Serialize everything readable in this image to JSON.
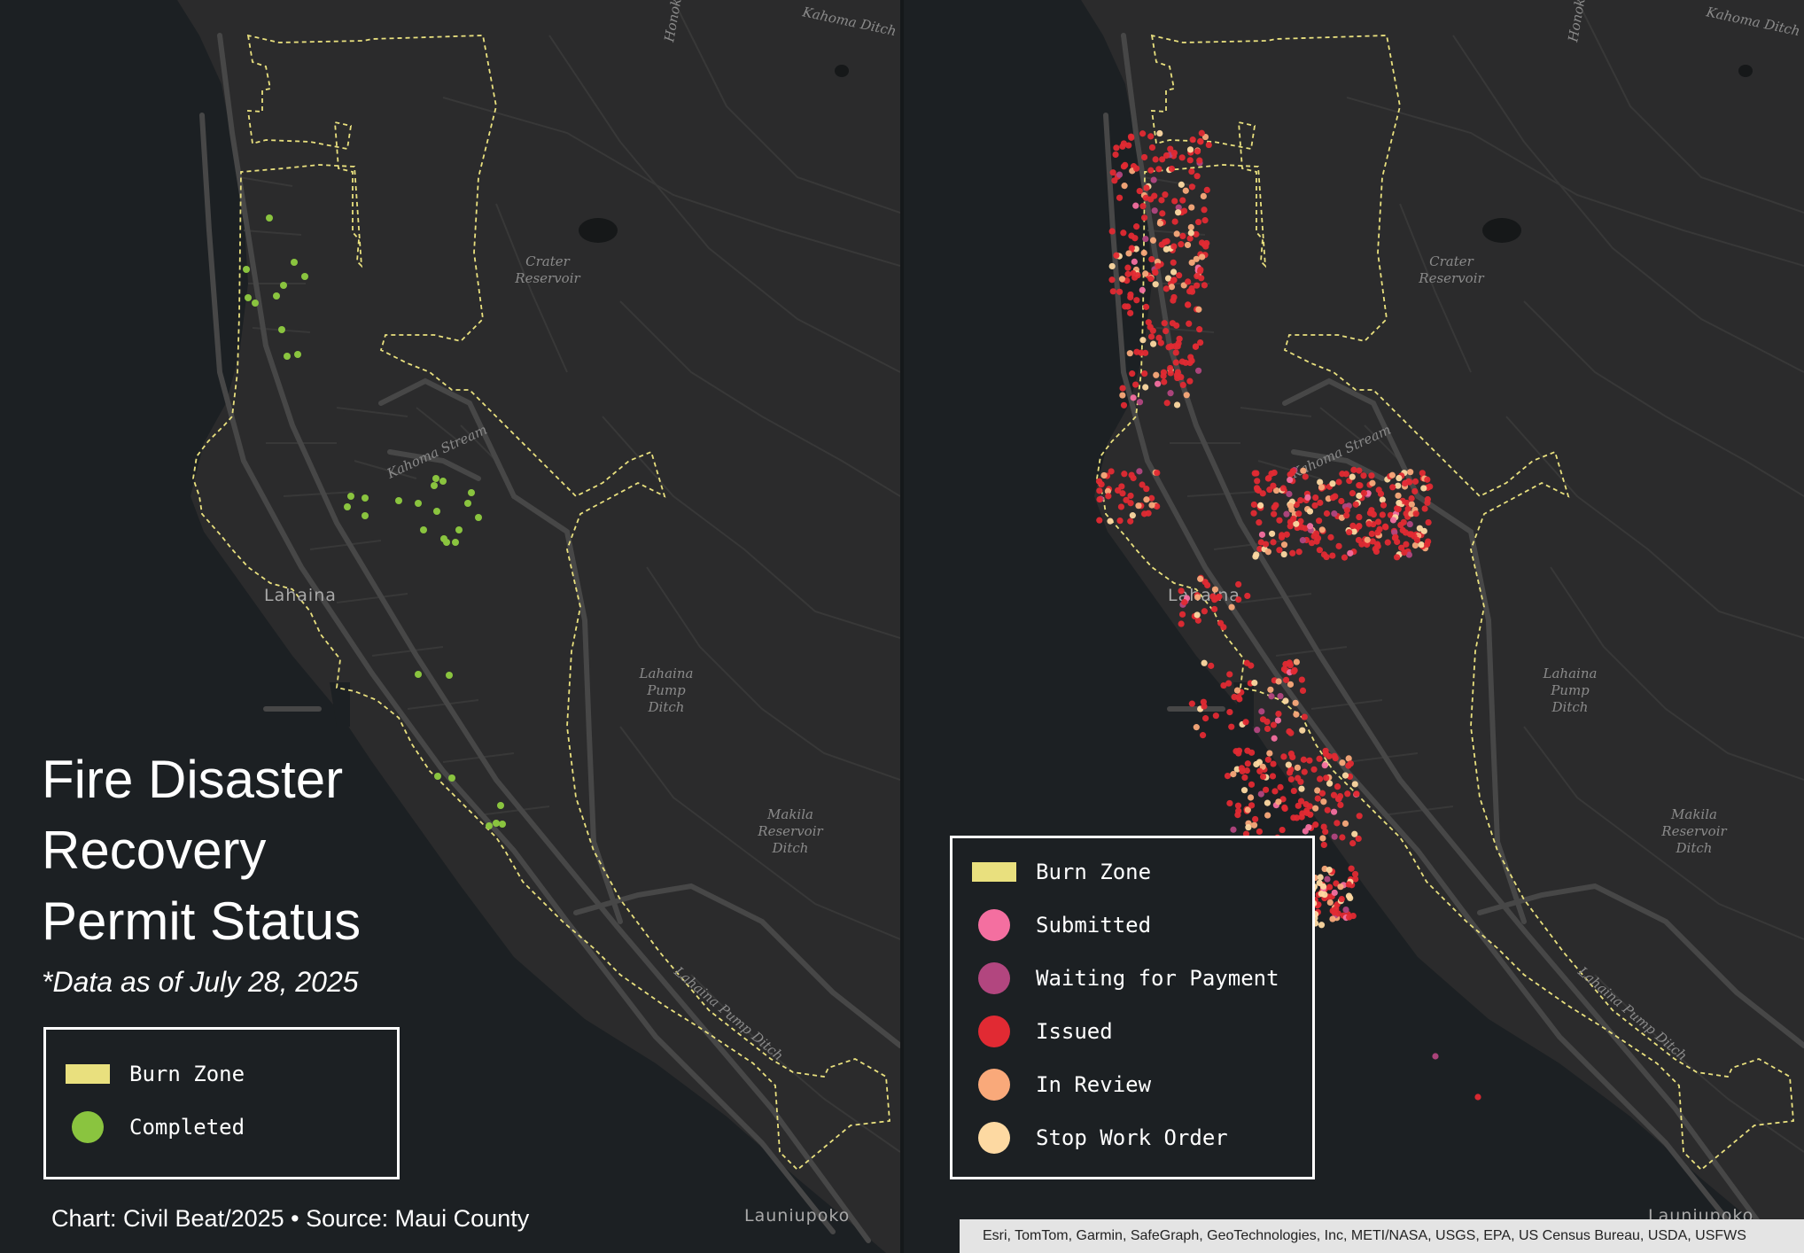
{
  "title": "Fire Disaster Recovery Permit Status",
  "title_lines": [
    "Fire Disaster",
    "Recovery",
    "Permit Status"
  ],
  "subtitle": "*Data as of July 28, 2025",
  "credit": "Chart: Civil Beat/2025 • Source: Maui County",
  "attribution": "Esri, TomTom, Garmin, SafeGraph, GeoTechnologies, Inc, METI/NASA, USGS, EPA, US Census Bureau, USDA, USFWS",
  "colors": {
    "background": "#1c2023",
    "land": "#2b2b2c",
    "roads": "#474747",
    "burn_zone": "#e9e07e",
    "completed": "#8ac43f",
    "submitted": "#f46fa0",
    "waiting_for_payment": "#b2467f",
    "issued": "#e12a33",
    "in_review": "#f9a97a",
    "stop_work_order": "#fdd9a2"
  },
  "map_labels": {
    "town": "Lahaina",
    "south_town": "Launiupoko",
    "crater_reservoir": [
      "Crater",
      "Reservoir"
    ],
    "lahaina_pump_ditch": [
      "Lahaina",
      "Pump",
      "Ditch"
    ],
    "makila_reservoir_ditch": [
      "Makila",
      "Reservoir",
      "Ditch"
    ],
    "kahoma_stream": "Kahoma Stream",
    "kahoma_ditch": "Kahoma Ditch",
    "honokowai": "Honoko",
    "lahaina_pump_ditch_road": "Lahaina Pump Ditch"
  },
  "left_legend": {
    "items": [
      {
        "label": "Burn Zone",
        "swatch": "rect",
        "color": "#e9e07e"
      },
      {
        "label": "Completed",
        "swatch": "dot",
        "color": "#8ac43f"
      }
    ]
  },
  "right_legend": {
    "items": [
      {
        "label": "Burn Zone",
        "swatch": "rect",
        "color": "#e9e07e"
      },
      {
        "label": "Submitted",
        "swatch": "dot",
        "color": "#f46fa0"
      },
      {
        "label": "Waiting for Payment",
        "swatch": "dot",
        "color": "#b2467f"
      },
      {
        "label": "Issued",
        "swatch": "dot",
        "color": "#e12a33"
      },
      {
        "label": "In Review",
        "swatch": "dot",
        "color": "#f9a97a"
      },
      {
        "label": "Stop Work Order",
        "swatch": "dot",
        "color": "#fdd9a2"
      }
    ]
  }
}
